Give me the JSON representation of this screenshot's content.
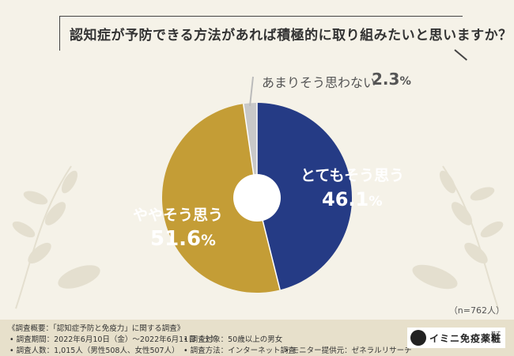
{
  "question": "認知症が予防できる方法があれば積極的に取り組みたいと思いますか？",
  "sample_size": "（n=762人）",
  "chart_data": {
    "type": "pie",
    "title": "認知症が予防できる方法があれば積極的に取り組みたいと思いますか？",
    "slices": [
      {
        "label": "とてもそう思う",
        "value": 46.1,
        "value_text": "46.1",
        "unit": "%",
        "color": "#253b85"
      },
      {
        "label": "ややそう思う",
        "value": 51.6,
        "value_text": "51.6",
        "unit": "%",
        "color": "#c49d36"
      },
      {
        "label": "あまりそう思わない",
        "value": 2.3,
        "value_text": "2.3",
        "unit": "%",
        "color": "#c8c8c8"
      }
    ],
    "start": "top",
    "direction": "clockwise",
    "donut": true
  },
  "footer": {
    "line1": "《調査概要：「認知症予防と免疫力」に関する調査》",
    "line2a": "• 調査期間：2022年6月10日（金）～2022年6月11日（土）",
    "line2b": "• 調査対象：50歳以上の男女",
    "line3a": "• 調査人数：1,015人（男性508人、女性507人）",
    "line3b": "• 調査方法：インターネット調査",
    "line3c": "• モニター提供元：ゼネラルリサーチ"
  },
  "logo": {
    "text": "イミニ免疫薬粧",
    "small": "株式会社"
  }
}
